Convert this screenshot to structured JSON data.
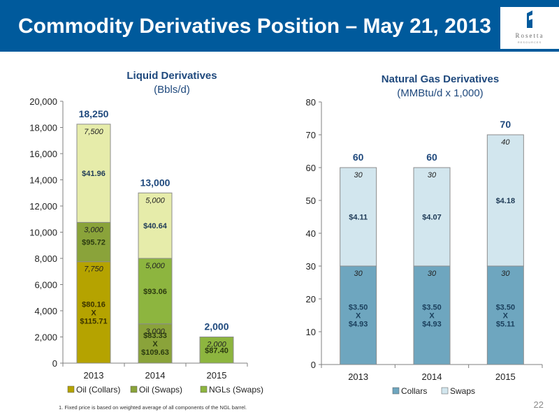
{
  "header": {
    "title": "Commodity Derivatives Position – May 21, 2013",
    "background": "#005a9c"
  },
  "logo": {
    "word": "Rosetta",
    "subtitle": "RESOURCES",
    "icon": "rosetta-logo-icon"
  },
  "slide_number": "22",
  "footnote": "1.   Fixed price is based on weighted average of all components of the NGL barrel.",
  "chart_data": [
    {
      "type": "bar",
      "stacked": true,
      "title": "Liquid Derivatives",
      "subtitle": "(Bbls/d)",
      "categories": [
        "2013",
        "2014",
        "2015"
      ],
      "ylim": [
        0,
        20000
      ],
      "yticks": [
        "0",
        "2,000",
        "4,000",
        "6,000",
        "8,000",
        "10,000",
        "12,000",
        "14,000",
        "16,000",
        "18,000",
        "20,000"
      ],
      "ytick_values": [
        0,
        2000,
        4000,
        6000,
        8000,
        10000,
        12000,
        14000,
        16000,
        18000,
        20000
      ],
      "grid": false,
      "legend_position": "bottom",
      "totals": [
        18250,
        13000,
        2000
      ],
      "total_labels": [
        "18,250",
        "13,000",
        "2,000"
      ],
      "series": [
        {
          "name": "Oil (Collars)",
          "color": "#b5a300",
          "values": [
            7750,
            0,
            0
          ],
          "volume_labels": [
            "7,750",
            "",
            ""
          ],
          "price_labels": [
            [
              "$80.16",
              "X",
              "$115.71"
            ],
            [],
            []
          ]
        },
        {
          "name": "Oil (Swaps)",
          "color": "#8aa33a",
          "values": [
            3000,
            3000,
            0
          ],
          "volume_labels": [
            "3,000",
            "3,000",
            ""
          ],
          "price_labels": [
            [
              "$95.72"
            ],
            [
              "$83.33",
              "X",
              "$109.63"
            ],
            []
          ]
        },
        {
          "name": "NGLs (Swaps)",
          "color": "#8db53f",
          "values": [
            0,
            5000,
            2000
          ],
          "volume_labels": [
            "",
            "5,000",
            "2,000"
          ],
          "price_labels": [
            [],
            [
              "$93.06"
            ],
            [
              "$87.40"
            ]
          ]
        },
        {
          "name": "",
          "color": "#e6ecaa",
          "values": [
            7500,
            5000,
            0
          ],
          "volume_labels": [
            "7,500",
            "5,000",
            ""
          ],
          "price_labels": [
            [
              "$41.96"
            ],
            [
              "$40.64"
            ],
            []
          ]
        }
      ]
    },
    {
      "type": "bar",
      "stacked": true,
      "title": "Natural Gas Derivatives",
      "subtitle": "(MMBtu/d x 1,000)",
      "categories": [
        "2013",
        "2014",
        "2015"
      ],
      "ylim": [
        0,
        80
      ],
      "yticks": [
        "0",
        "10",
        "20",
        "30",
        "40",
        "50",
        "60",
        "70",
        "80"
      ],
      "ytick_values": [
        0,
        10,
        20,
        30,
        40,
        50,
        60,
        70,
        80
      ],
      "grid": false,
      "legend_position": "bottom",
      "totals": [
        60,
        60,
        70
      ],
      "total_labels": [
        "60",
        "60",
        "70"
      ],
      "series": [
        {
          "name": "Collars",
          "color": "#6ea6bf",
          "values": [
            30,
            30,
            30
          ],
          "volume_labels": [
            "30",
            "30",
            "30"
          ],
          "price_labels": [
            [
              "$3.50",
              "X",
              "$4.93"
            ],
            [
              "$3.50",
              "X",
              "$4.93"
            ],
            [
              "$3.50",
              "X",
              "$5.11"
            ]
          ]
        },
        {
          "name": "Swaps",
          "color": "#d2e6ee",
          "values": [
            30,
            30,
            40
          ],
          "volume_labels": [
            "30",
            "30",
            "40"
          ],
          "price_labels": [
            [
              "$4.11"
            ],
            [
              "$4.07"
            ],
            [
              "$4.18"
            ]
          ]
        }
      ]
    }
  ]
}
